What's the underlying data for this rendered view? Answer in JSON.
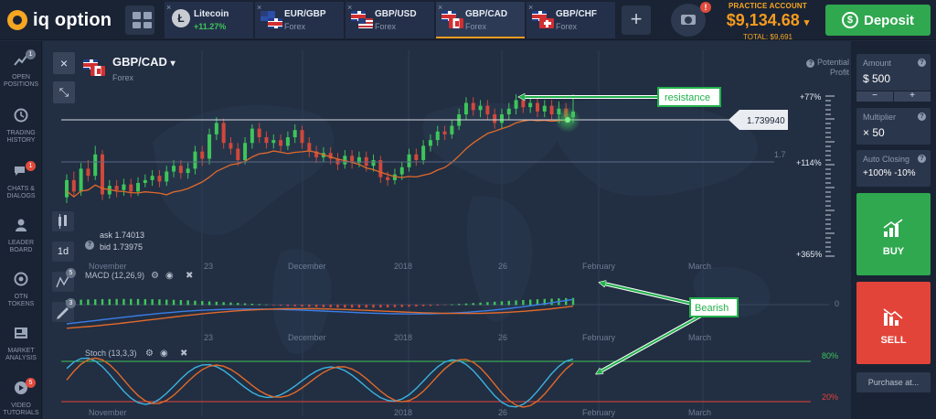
{
  "app": {
    "logo_text": "iq option"
  },
  "tabs": [
    {
      "title": "Litecoin",
      "sub": "+11.27%",
      "icon": "litecoin-icon",
      "close": "×"
    },
    {
      "title": "EUR/GBP",
      "sub": "Forex",
      "icon": "eur-gbp-flags",
      "close": "×"
    },
    {
      "title": "GBP/USD",
      "sub": "Forex",
      "icon": "gbp-usd-flags",
      "close": "×"
    },
    {
      "title": "GBP/CAD",
      "sub": "Forex",
      "icon": "gbp-cad-flags",
      "close": "×",
      "active": true
    },
    {
      "title": "GBP/CHF",
      "sub": "Forex",
      "icon": "gbp-chf-flags",
      "close": "×"
    }
  ],
  "add_tab": "+",
  "camera_badge": "!",
  "account": {
    "label": "PRACTICE ACCOUNT",
    "balance": "$9,134.68",
    "balance_arrow": "▾",
    "total": "TOTAL: $9,691"
  },
  "deposit": {
    "label": "Deposit",
    "symbol": "$"
  },
  "leftnav": [
    {
      "label1": "OPEN",
      "label2": "POSITIONS",
      "badge": "1",
      "badge_color": "gray",
      "icon": "open-positions-icon"
    },
    {
      "label1": "TRADING",
      "label2": "HISTORY",
      "badge": "",
      "icon": "history-icon"
    },
    {
      "label1": "CHATS &",
      "label2": "DIALOGS",
      "badge": "1",
      "badge_color": "red",
      "icon": "chat-icon"
    },
    {
      "label1": "LEADER",
      "label2": "BOARD",
      "badge": "",
      "icon": "leaderboard-icon"
    },
    {
      "label1": "OTN",
      "label2": "TOKENS",
      "badge": "",
      "icon": "otn-token-icon"
    },
    {
      "label1": "MARKET",
      "label2": "ANALYSIS",
      "badge": "",
      "icon": "market-analysis-icon"
    },
    {
      "label1": "VIDEO",
      "label2": "TUTORIALS",
      "badge": "5",
      "badge_color": "red",
      "icon": "video-icon"
    }
  ],
  "chart_header": {
    "pair": "GBP/CAD",
    "pair_arrow": "▾",
    "market": "Forex",
    "potential_profit_l1": "Potential",
    "potential_profit_l2": "Profit",
    "help": "?"
  },
  "chart_tools": {
    "close": "×",
    "collapse": "⤡",
    "timeframe": "1d",
    "indicator_count": "5",
    "drawing_count": "3"
  },
  "quote": {
    "help": "?",
    "ask": "ask 1.74013",
    "bid": "bid 1.73975"
  },
  "annotations": {
    "resistance": "resistance",
    "bearish": "Bearish"
  },
  "chart_data": [
    {
      "type": "candlestick",
      "title": "GBP/CAD",
      "current_price": "1.739940",
      "price_label_extra": "1.7",
      "profit_levels": [
        "+77%",
        "+114%",
        "+365%"
      ],
      "time_labels": [
        "November",
        "23",
        "December",
        "2018",
        "26",
        "February",
        "March"
      ],
      "candles": [
        {
          "o": 1.7,
          "c": 1.712,
          "h": 1.716,
          "l": 1.696
        },
        {
          "o": 1.712,
          "c": 1.704,
          "h": 1.718,
          "l": 1.7
        },
        {
          "o": 1.704,
          "c": 1.72,
          "h": 1.724,
          "l": 1.701
        },
        {
          "o": 1.72,
          "c": 1.715,
          "h": 1.726,
          "l": 1.711
        },
        {
          "o": 1.715,
          "c": 1.73,
          "h": 1.736,
          "l": 1.712
        },
        {
          "o": 1.73,
          "c": 1.702,
          "h": 1.733,
          "l": 1.698
        },
        {
          "o": 1.702,
          "c": 1.708,
          "h": 1.712,
          "l": 1.699
        },
        {
          "o": 1.708,
          "c": 1.705,
          "h": 1.712,
          "l": 1.7
        },
        {
          "o": 1.705,
          "c": 1.709,
          "h": 1.713,
          "l": 1.701
        },
        {
          "o": 1.709,
          "c": 1.704,
          "h": 1.713,
          "l": 1.7
        },
        {
          "o": 1.704,
          "c": 1.71,
          "h": 1.714,
          "l": 1.701
        },
        {
          "o": 1.71,
          "c": 1.712,
          "h": 1.716,
          "l": 1.707
        },
        {
          "o": 1.712,
          "c": 1.715,
          "h": 1.719,
          "l": 1.708
        },
        {
          "o": 1.715,
          "c": 1.711,
          "h": 1.719,
          "l": 1.707
        },
        {
          "o": 1.711,
          "c": 1.718,
          "h": 1.722,
          "l": 1.708
        },
        {
          "o": 1.718,
          "c": 1.722,
          "h": 1.726,
          "l": 1.714
        },
        {
          "o": 1.722,
          "c": 1.717,
          "h": 1.726,
          "l": 1.713
        },
        {
          "o": 1.717,
          "c": 1.72,
          "h": 1.724,
          "l": 1.713
        },
        {
          "o": 1.72,
          "c": 1.732,
          "h": 1.736,
          "l": 1.716
        },
        {
          "o": 1.732,
          "c": 1.727,
          "h": 1.736,
          "l": 1.722
        },
        {
          "o": 1.727,
          "c": 1.744,
          "h": 1.748,
          "l": 1.723
        },
        {
          "o": 1.744,
          "c": 1.752,
          "h": 1.756,
          "l": 1.74
        },
        {
          "o": 1.752,
          "c": 1.738,
          "h": 1.755,
          "l": 1.734
        },
        {
          "o": 1.738,
          "c": 1.734,
          "h": 1.742,
          "l": 1.73
        },
        {
          "o": 1.734,
          "c": 1.726,
          "h": 1.738,
          "l": 1.722
        },
        {
          "o": 1.726,
          "c": 1.738,
          "h": 1.742,
          "l": 1.723
        },
        {
          "o": 1.738,
          "c": 1.748,
          "h": 1.751,
          "l": 1.734
        },
        {
          "o": 1.748,
          "c": 1.742,
          "h": 1.752,
          "l": 1.738
        },
        {
          "o": 1.742,
          "c": 1.738,
          "h": 1.746,
          "l": 1.734
        },
        {
          "o": 1.738,
          "c": 1.74,
          "h": 1.744,
          "l": 1.734
        },
        {
          "o": 1.74,
          "c": 1.736,
          "h": 1.744,
          "l": 1.732
        },
        {
          "o": 1.736,
          "c": 1.742,
          "h": 1.746,
          "l": 1.733
        },
        {
          "o": 1.742,
          "c": 1.747,
          "h": 1.751,
          "l": 1.738
        },
        {
          "o": 1.747,
          "c": 1.738,
          "h": 1.75,
          "l": 1.734
        },
        {
          "o": 1.738,
          "c": 1.732,
          "h": 1.742,
          "l": 1.728
        },
        {
          "o": 1.732,
          "c": 1.728,
          "h": 1.736,
          "l": 1.724
        },
        {
          "o": 1.728,
          "c": 1.731,
          "h": 1.735,
          "l": 1.725
        },
        {
          "o": 1.731,
          "c": 1.727,
          "h": 1.735,
          "l": 1.723
        },
        {
          "o": 1.727,
          "c": 1.723,
          "h": 1.731,
          "l": 1.719
        },
        {
          "o": 1.723,
          "c": 1.729,
          "h": 1.733,
          "l": 1.72
        },
        {
          "o": 1.729,
          "c": 1.724,
          "h": 1.733,
          "l": 1.72
        },
        {
          "o": 1.724,
          "c": 1.728,
          "h": 1.732,
          "l": 1.721
        },
        {
          "o": 1.728,
          "c": 1.722,
          "h": 1.732,
          "l": 1.718
        },
        {
          "o": 1.722,
          "c": 1.726,
          "h": 1.73,
          "l": 1.718
        },
        {
          "o": 1.726,
          "c": 1.714,
          "h": 1.729,
          "l": 1.71
        },
        {
          "o": 1.714,
          "c": 1.712,
          "h": 1.718,
          "l": 1.708
        },
        {
          "o": 1.712,
          "c": 1.716,
          "h": 1.72,
          "l": 1.709
        },
        {
          "o": 1.716,
          "c": 1.721,
          "h": 1.725,
          "l": 1.712
        },
        {
          "o": 1.721,
          "c": 1.73,
          "h": 1.734,
          "l": 1.718
        },
        {
          "o": 1.73,
          "c": 1.726,
          "h": 1.734,
          "l": 1.722
        },
        {
          "o": 1.726,
          "c": 1.736,
          "h": 1.74,
          "l": 1.723
        },
        {
          "o": 1.736,
          "c": 1.74,
          "h": 1.744,
          "l": 1.732
        },
        {
          "o": 1.74,
          "c": 1.746,
          "h": 1.75,
          "l": 1.736
        },
        {
          "o": 1.746,
          "c": 1.744,
          "h": 1.75,
          "l": 1.74
        },
        {
          "o": 1.744,
          "c": 1.75,
          "h": 1.754,
          "l": 1.741
        },
        {
          "o": 1.75,
          "c": 1.758,
          "h": 1.762,
          "l": 1.747
        },
        {
          "o": 1.758,
          "c": 1.766,
          "h": 1.77,
          "l": 1.754
        },
        {
          "o": 1.766,
          "c": 1.761,
          "h": 1.77,
          "l": 1.757
        },
        {
          "o": 1.761,
          "c": 1.764,
          "h": 1.768,
          "l": 1.756
        },
        {
          "o": 1.764,
          "c": 1.758,
          "h": 1.768,
          "l": 1.754
        },
        {
          "o": 1.758,
          "c": 1.752,
          "h": 1.762,
          "l": 1.748
        },
        {
          "o": 1.752,
          "c": 1.758,
          "h": 1.762,
          "l": 1.748
        },
        {
          "o": 1.758,
          "c": 1.762,
          "h": 1.766,
          "l": 1.754
        },
        {
          "o": 1.762,
          "c": 1.768,
          "h": 1.772,
          "l": 1.758
        },
        {
          "o": 1.768,
          "c": 1.763,
          "h": 1.772,
          "l": 1.759
        },
        {
          "o": 1.763,
          "c": 1.766,
          "h": 1.77,
          "l": 1.759
        },
        {
          "o": 1.766,
          "c": 1.76,
          "h": 1.77,
          "l": 1.756
        },
        {
          "o": 1.76,
          "c": 1.764,
          "h": 1.768,
          "l": 1.756
        },
        {
          "o": 1.764,
          "c": 1.758,
          "h": 1.768,
          "l": 1.754
        },
        {
          "o": 1.758,
          "c": 1.762,
          "h": 1.767,
          "l": 1.752
        },
        {
          "o": 1.762,
          "c": 1.756,
          "h": 1.766,
          "l": 1.752
        },
        {
          "o": 1.756,
          "c": 1.76,
          "h": 1.772,
          "l": 1.752
        }
      ]
    },
    {
      "type": "line",
      "title": "MACD (12,26,9)",
      "zero_label": "0"
    },
    {
      "type": "line",
      "title": "Stoch (13,3,3)",
      "levels": [
        {
          "name": "80%",
          "color": "#3ec55a"
        },
        {
          "name": "20%",
          "color": "#e3443a"
        }
      ]
    }
  ],
  "rightpanel": {
    "amount_label": "Amount",
    "amount_value": "$  500",
    "minus": "−",
    "plus": "+",
    "multiplier_label": "Multiplier",
    "multiplier_value": "× 50",
    "auto_closing_label": "Auto Closing",
    "auto_closing_value": "+100% -10%",
    "help": "?",
    "buy_label": "BUY",
    "sell_label": "SELL",
    "purchase_label": "Purchase at..."
  },
  "colors": {
    "accent": "#f59b1e",
    "buy": "#2fa84f",
    "sell": "#e3443a",
    "annotation": "#22b14c"
  }
}
